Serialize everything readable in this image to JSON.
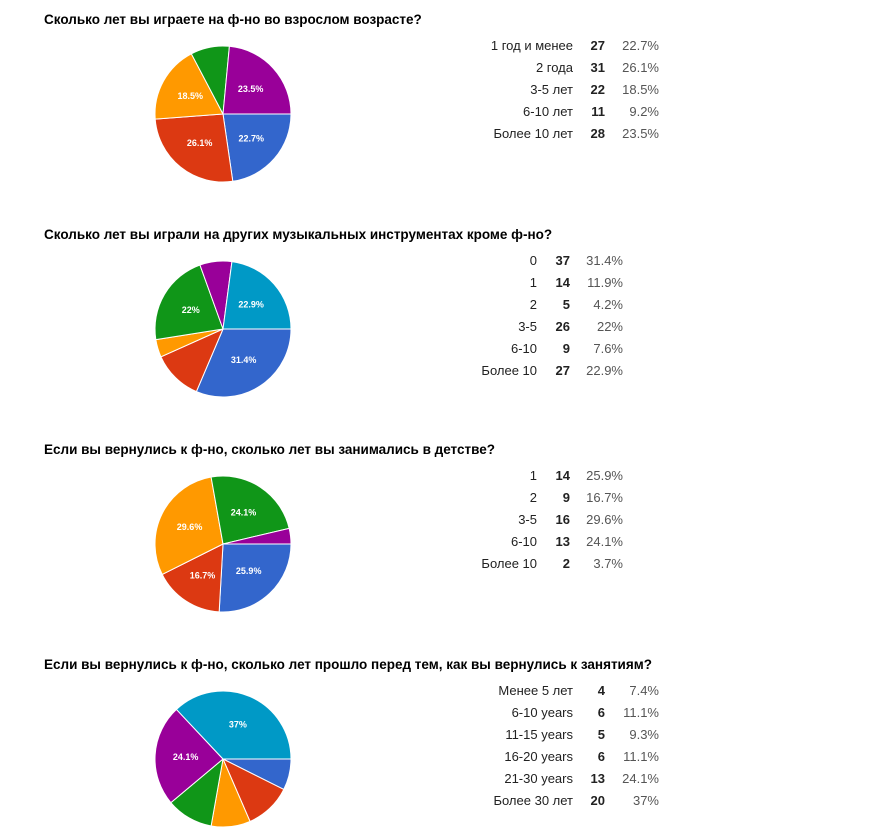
{
  "colors": {
    "blue": "#3366cc",
    "red": "#dc3912",
    "orange": "#ff9900",
    "green": "#109618",
    "purple": "#990099",
    "teal": "#0099c6"
  },
  "chart_data": [
    {
      "type": "pie",
      "title": "Сколько лет вы играете на ф-но во взрослом возрасте?",
      "categories": [
        "1 год и менее",
        "2 года",
        "3-5 лет",
        "6-10 лет",
        "Более 10 лет"
      ],
      "counts": [
        27,
        31,
        22,
        11,
        28
      ],
      "percents": [
        "22.7%",
        "26.1%",
        "18.5%",
        "9.2%",
        "23.5%"
      ],
      "values": [
        22.7,
        26.1,
        18.5,
        9.2,
        23.5
      ],
      "slice_labels": [
        "22.7%",
        "26.1%",
        "18.5%",
        "",
        "23.5%"
      ],
      "colors": [
        "#3366cc",
        "#dc3912",
        "#ff9900",
        "#109618",
        "#990099"
      ]
    },
    {
      "type": "pie",
      "title": "Сколько лет вы играли на других музыкальных инструментах кроме ф-но?",
      "categories": [
        "0",
        "1",
        "2",
        "3-5",
        "6-10",
        "Более 10"
      ],
      "counts": [
        37,
        14,
        5,
        26,
        9,
        27
      ],
      "percents": [
        "31.4%",
        "11.9%",
        "4.2%",
        "22%",
        "7.6%",
        "22.9%"
      ],
      "values": [
        31.4,
        11.9,
        4.2,
        22,
        7.6,
        22.9
      ],
      "slice_labels": [
        "31.4%",
        "",
        "",
        "22%",
        "",
        "22.9%"
      ],
      "colors": [
        "#3366cc",
        "#dc3912",
        "#ff9900",
        "#109618",
        "#990099",
        "#0099c6"
      ]
    },
    {
      "type": "pie",
      "title": "Если вы вернулись к ф-но, сколько лет вы занимались в детстве?",
      "categories": [
        "1",
        "2",
        "3-5",
        "6-10",
        "Более 10"
      ],
      "counts": [
        14,
        9,
        16,
        13,
        2
      ],
      "percents": [
        "25.9%",
        "16.7%",
        "29.6%",
        "24.1%",
        "3.7%"
      ],
      "values": [
        25.9,
        16.7,
        29.6,
        24.1,
        3.7
      ],
      "slice_labels": [
        "25.9%",
        "16.7%",
        "29.6%",
        "24.1%",
        ""
      ],
      "colors": [
        "#3366cc",
        "#dc3912",
        "#ff9900",
        "#109618",
        "#990099"
      ]
    },
    {
      "type": "pie",
      "title": "Если вы вернулись к ф-но, сколько лет прошло перед тем, как вы вернулись к занятиям?",
      "categories": [
        "Менее 5 лет",
        "6-10 years",
        "11-15 years",
        "16-20 years",
        "21-30 years",
        "Более 30 лет"
      ],
      "counts": [
        4,
        6,
        5,
        6,
        13,
        20
      ],
      "percents": [
        "7.4%",
        "11.1%",
        "9.3%",
        "11.1%",
        "24.1%",
        "37%"
      ],
      "values": [
        7.4,
        11.1,
        9.3,
        11.1,
        24.1,
        37
      ],
      "slice_labels": [
        "",
        "",
        "",
        "",
        "24.1%",
        "37%"
      ],
      "colors": [
        "#3366cc",
        "#dc3912",
        "#ff9900",
        "#109618",
        "#990099",
        "#0099c6"
      ]
    }
  ]
}
